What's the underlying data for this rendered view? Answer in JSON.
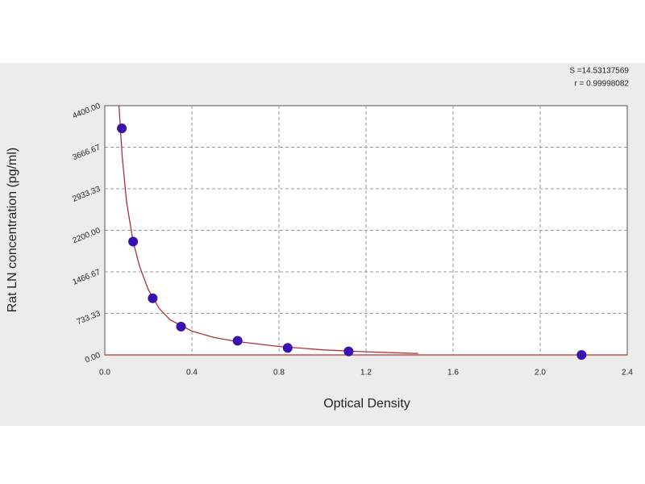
{
  "chart_data": {
    "type": "scatter",
    "x_label": "Optical Density",
    "y_label": "Rat LN concentration (pg/ml)",
    "annotations": [
      "S =14.53137569",
      "r = 0.99998082"
    ],
    "xlim": [
      0,
      2.4
    ],
    "xticks": [
      {
        "value": 0,
        "label": "0.0"
      },
      0.4,
      0.8,
      1.2,
      1.6,
      {
        "value": 2,
        "label": "2.0"
      },
      2.4
    ],
    "ylim": [
      0,
      4400
    ],
    "yticks": [
      {
        "value": 0,
        "label": "0.00"
      },
      {
        "value": 733.33,
        "label": "733.33"
      },
      {
        "value": 1466.67,
        "label": "1466.67"
      },
      {
        "value": 2200,
        "label": "2200.00"
      },
      {
        "value": 2933.33,
        "label": "2933.33"
      },
      {
        "value": 3666.67,
        "label": "3666.67"
      },
      {
        "value": 4400,
        "label": "4400.00"
      }
    ],
    "grid": true,
    "series": [
      {
        "type": "line",
        "color": "#b03030",
        "x": [
          0.065,
          0.08,
          0.1,
          0.13,
          0.16,
          0.2,
          0.25,
          0.3,
          0.4,
          0.5,
          0.6,
          0.8,
          1.0,
          1.2,
          1.44
        ],
        "values": [
          4400,
          3500,
          2700,
          2000,
          1560,
          1150,
          820,
          620,
          420,
          310,
          240,
          150,
          90,
          55,
          25
        ]
      },
      {
        "type": "scatter",
        "color": "#3a10b0",
        "x": [
          0.078,
          0.13,
          0.22,
          0.35,
          0.61,
          0.84,
          1.12,
          2.19
        ],
        "values": [
          4000,
          2000,
          1000,
          500,
          250,
          125,
          62.5,
          0
        ]
      }
    ]
  }
}
